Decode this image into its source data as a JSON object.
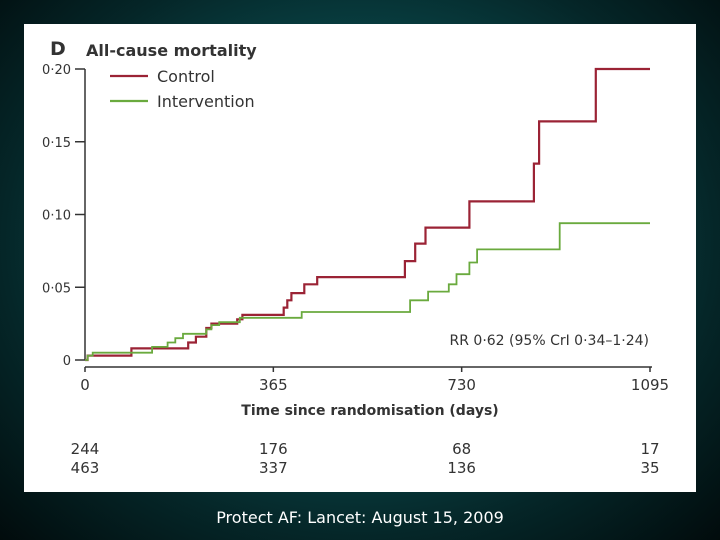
{
  "caption": "Protect AF: Lancet: August 15, 2009",
  "chart_data": {
    "type": "line",
    "panel_label": "D",
    "title": "All-cause mortality",
    "xlabel": "Time since randomisation (days)",
    "ylabel": "",
    "xlim": [
      0,
      1095
    ],
    "ylim": [
      0,
      0.2
    ],
    "x_ticks": [
      0,
      365,
      730,
      1095
    ],
    "y_ticks": [
      {
        "value": 0,
        "label": "0"
      },
      {
        "value": 0.05,
        "label": "0·05"
      },
      {
        "value": 0.1,
        "label": "0·10"
      },
      {
        "value": 0.15,
        "label": "0·15"
      },
      {
        "value": 0.2,
        "label": "0·20"
      }
    ],
    "grid": false,
    "legend_position": "top-left",
    "annotation": "RR 0·62 (95% CrI 0·34–1·24)",
    "series": [
      {
        "name": "Control",
        "color": "#9b2335",
        "steps": [
          [
            0,
            0
          ],
          [
            5,
            0.003
          ],
          [
            90,
            0.008
          ],
          [
            200,
            0.012
          ],
          [
            215,
            0.016
          ],
          [
            235,
            0.022
          ],
          [
            245,
            0.025
          ],
          [
            295,
            0.028
          ],
          [
            305,
            0.031
          ],
          [
            385,
            0.036
          ],
          [
            392,
            0.041
          ],
          [
            400,
            0.046
          ],
          [
            425,
            0.052
          ],
          [
            450,
            0.057
          ],
          [
            620,
            0.068
          ],
          [
            640,
            0.08
          ],
          [
            660,
            0.091
          ],
          [
            745,
            0.109
          ],
          [
            870,
            0.135
          ],
          [
            880,
            0.164
          ],
          [
            990,
            0.2
          ],
          [
            1095,
            0.2
          ]
        ]
      },
      {
        "name": "Intervention",
        "color": "#6aaa3e",
        "steps": [
          [
            0,
            0
          ],
          [
            5,
            0.003
          ],
          [
            15,
            0.005
          ],
          [
            130,
            0.009
          ],
          [
            160,
            0.012
          ],
          [
            175,
            0.015
          ],
          [
            190,
            0.018
          ],
          [
            235,
            0.021
          ],
          [
            245,
            0.024
          ],
          [
            260,
            0.026
          ],
          [
            300,
            0.029
          ],
          [
            420,
            0.033
          ],
          [
            630,
            0.041
          ],
          [
            665,
            0.047
          ],
          [
            705,
            0.052
          ],
          [
            720,
            0.059
          ],
          [
            745,
            0.067
          ],
          [
            760,
            0.076
          ],
          [
            920,
            0.094
          ],
          [
            1095,
            0.094
          ]
        ]
      }
    ],
    "at_risk": {
      "x": [
        0,
        365,
        730,
        1095
      ],
      "rows": [
        {
          "name": "Control",
          "values": [
            "244",
            "176",
            "68",
            "17"
          ]
        },
        {
          "name": "Intervention",
          "values": [
            "463",
            "337",
            "136",
            "35"
          ]
        }
      ]
    }
  }
}
